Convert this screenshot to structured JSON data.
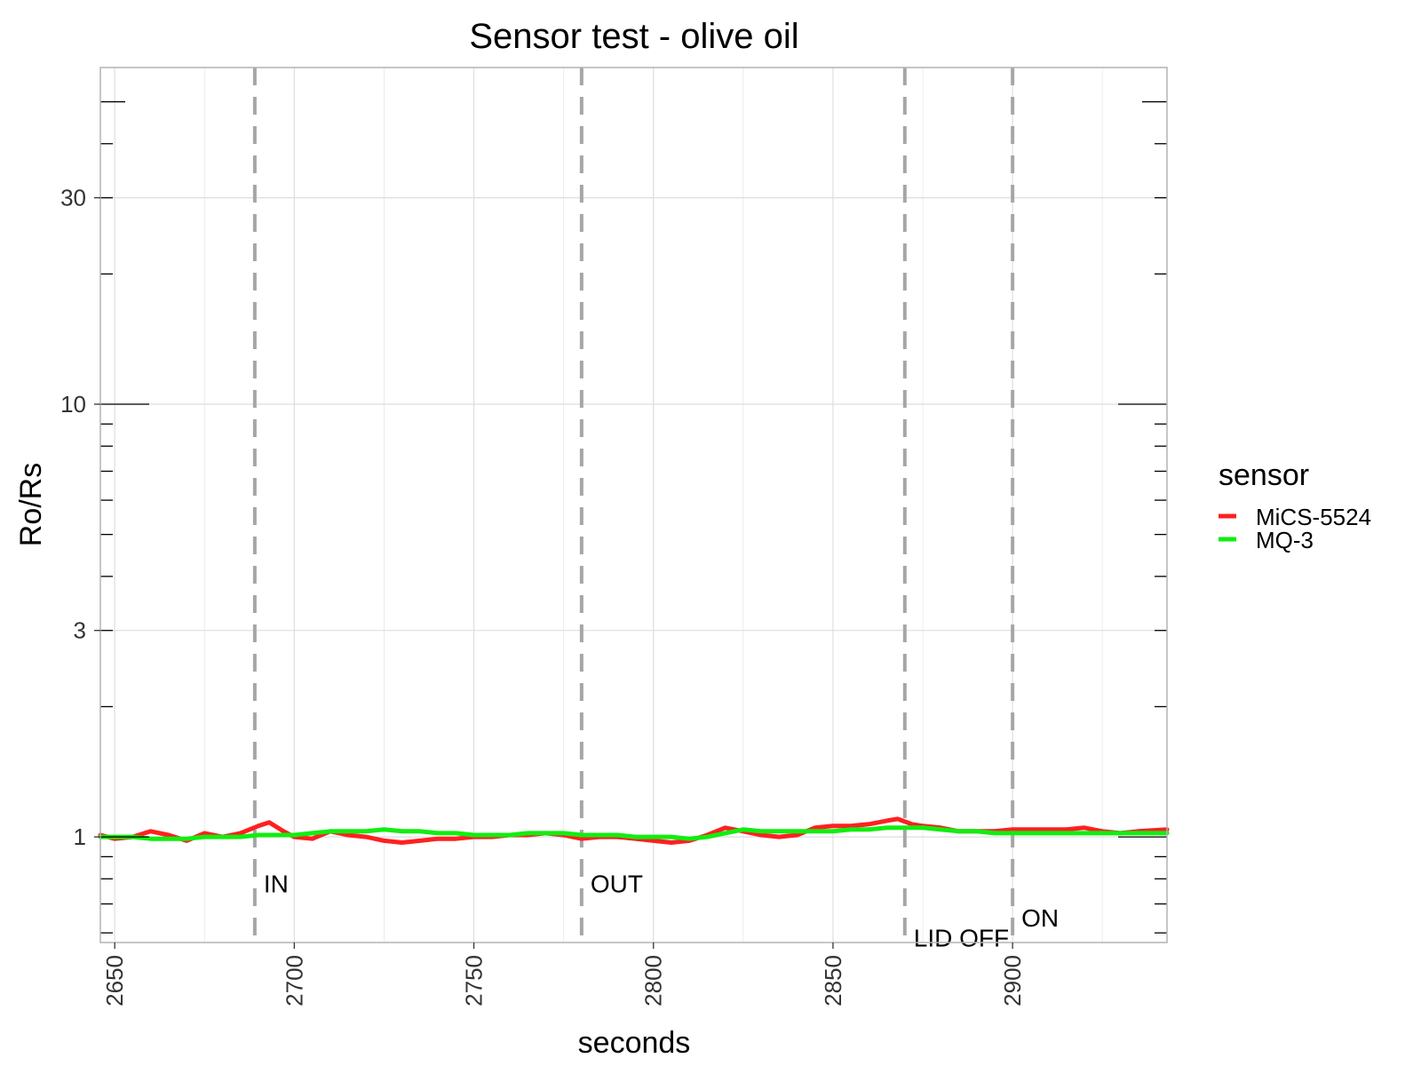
{
  "chart_data": {
    "type": "line",
    "title": "Sensor test - olive oil",
    "xlabel": "seconds",
    "ylabel": "Ro/Rs",
    "xlim": [
      2646,
      2943
    ],
    "ylim": [
      0.57,
      60
    ],
    "y_scale": "log",
    "grid": true,
    "x_ticks": [
      2650,
      2700,
      2750,
      2800,
      2850,
      2900
    ],
    "x_tick_labels": [
      "2650",
      "2700",
      "2750",
      "2800",
      "2850",
      "2900"
    ],
    "y_ticks": [
      1,
      3,
      10,
      30
    ],
    "y_tick_labels": [
      "1",
      "3",
      "10",
      "30"
    ],
    "legend": {
      "title": "sensor",
      "position": "right",
      "entries": [
        {
          "label": "MiCS-5524",
          "color": "#ff2020"
        },
        {
          "label": "MQ-3",
          "color": "#10ee10"
        }
      ]
    },
    "events": [
      {
        "x": 2689,
        "label": "IN",
        "label_y": 0.78
      },
      {
        "x": 2780,
        "label": "OUT",
        "label_y": 0.78
      },
      {
        "x": 2870,
        "label": "LID OFF",
        "label_y": 0.585
      },
      {
        "x": 2900,
        "label": "ON",
        "label_y": 0.65
      }
    ],
    "series": [
      {
        "name": "MiCS-5524",
        "color": "#ff2020",
        "x": [
          2646,
          2650,
          2655,
          2660,
          2665,
          2670,
          2675,
          2680,
          2685,
          2690,
          2693,
          2697,
          2700,
          2705,
          2710,
          2715,
          2720,
          2725,
          2730,
          2735,
          2740,
          2745,
          2750,
          2755,
          2760,
          2765,
          2770,
          2775,
          2780,
          2785,
          2790,
          2795,
          2800,
          2805,
          2810,
          2815,
          2820,
          2825,
          2830,
          2835,
          2840,
          2845,
          2850,
          2855,
          2860,
          2865,
          2868,
          2872,
          2875,
          2880,
          2885,
          2890,
          2895,
          2900,
          2905,
          2910,
          2915,
          2920,
          2925,
          2930,
          2935,
          2943
        ],
        "y": [
          1.01,
          0.99,
          1.0,
          1.03,
          1.01,
          0.98,
          1.02,
          1.0,
          1.02,
          1.06,
          1.08,
          1.03,
          1.0,
          0.99,
          1.03,
          1.01,
          1.0,
          0.98,
          0.97,
          0.98,
          0.99,
          0.99,
          1.0,
          1.0,
          1.01,
          1.01,
          1.02,
          1.01,
          0.99,
          1.0,
          1.0,
          0.99,
          0.98,
          0.97,
          0.98,
          1.01,
          1.05,
          1.03,
          1.01,
          1.0,
          1.01,
          1.05,
          1.06,
          1.06,
          1.07,
          1.09,
          1.1,
          1.07,
          1.06,
          1.05,
          1.03,
          1.03,
          1.03,
          1.04,
          1.04,
          1.04,
          1.04,
          1.05,
          1.03,
          1.02,
          1.03,
          1.04
        ]
      },
      {
        "name": "MQ-3",
        "color": "#10ee10",
        "x": [
          2646,
          2650,
          2655,
          2660,
          2665,
          2670,
          2675,
          2680,
          2685,
          2690,
          2695,
          2700,
          2705,
          2710,
          2715,
          2720,
          2725,
          2730,
          2735,
          2740,
          2745,
          2750,
          2755,
          2760,
          2765,
          2770,
          2775,
          2780,
          2785,
          2790,
          2795,
          2800,
          2805,
          2810,
          2815,
          2820,
          2825,
          2830,
          2835,
          2840,
          2845,
          2850,
          2855,
          2860,
          2865,
          2870,
          2875,
          2880,
          2885,
          2890,
          2895,
          2900,
          2905,
          2910,
          2915,
          2920,
          2925,
          2930,
          2935,
          2943
        ],
        "y": [
          1.0,
          1.0,
          1.0,
          0.99,
          0.99,
          0.99,
          1.0,
          1.0,
          1.0,
          1.01,
          1.01,
          1.01,
          1.02,
          1.03,
          1.03,
          1.03,
          1.04,
          1.03,
          1.03,
          1.02,
          1.02,
          1.01,
          1.01,
          1.01,
          1.02,
          1.02,
          1.02,
          1.01,
          1.01,
          1.01,
          1.0,
          1.0,
          1.0,
          0.99,
          1.0,
          1.02,
          1.04,
          1.03,
          1.03,
          1.03,
          1.03,
          1.03,
          1.04,
          1.04,
          1.05,
          1.05,
          1.05,
          1.04,
          1.03,
          1.03,
          1.02,
          1.02,
          1.02,
          1.02,
          1.02,
          1.02,
          1.02,
          1.02,
          1.02,
          1.02
        ]
      }
    ]
  }
}
